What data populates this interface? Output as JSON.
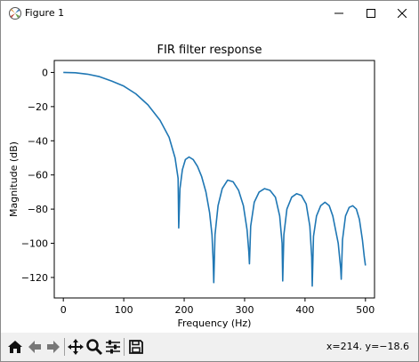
{
  "window": {
    "title": "Figure 1"
  },
  "toolbar": {
    "icons": [
      "home-icon",
      "back-arrow-icon",
      "forward-arrow-icon",
      "pan-move-icon",
      "zoom-magnifier-icon",
      "configure-subplots-icon",
      "save-floppy-icon"
    ],
    "coordinates": "x=214.  y=−18.6"
  },
  "chart_data": {
    "type": "line",
    "title": "FIR filter response",
    "xlabel": "Frequency (Hz)",
    "ylabel": "Magnitude (dB)",
    "xlim": [
      -15,
      515
    ],
    "ylim": [
      -132,
      7
    ],
    "xticks": [
      0,
      100,
      200,
      300,
      400,
      500
    ],
    "xtick_labels": [
      "0",
      "100",
      "200",
      "300",
      "400",
      "500"
    ],
    "yticks": [
      0,
      -20,
      -40,
      -60,
      -80,
      -100,
      -120
    ],
    "ytick_labels": [
      "0",
      "−20",
      "−40",
      "−60",
      "−80",
      "−100",
      "−120"
    ],
    "grid": false,
    "series": [
      {
        "color": "#1f77b4",
        "x": [
          0,
          20,
          40,
          60,
          80,
          100,
          120,
          140,
          160,
          175,
          185,
          190,
          191,
          193,
          197,
          202,
          208,
          215,
          222,
          229,
          236,
          242,
          246,
          248,
          249,
          251,
          256,
          263,
          272,
          281,
          290,
          298,
          304,
          307,
          308,
          310,
          316,
          324,
          333,
          342,
          351,
          358,
          362,
          363,
          365,
          370,
          378,
          386,
          394,
          402,
          408,
          411,
          412,
          414,
          419,
          426,
          433,
          440,
          446,
          455,
          459,
          460,
          462,
          467,
          473,
          479,
          485,
          490,
          495,
          498,
          500
        ],
        "y": [
          0,
          -0.2,
          -1,
          -2.5,
          -5,
          -8,
          -12.5,
          -19,
          -28,
          -38,
          -50,
          -62,
          -91,
          -68,
          -57,
          -51,
          -49.5,
          -51,
          -55,
          -61,
          -70,
          -82,
          -95,
          -110,
          -123,
          -95,
          -78,
          -68,
          -63,
          -64,
          -69,
          -78,
          -92,
          -105,
          -112,
          -90,
          -76,
          -70,
          -68,
          -69,
          -73,
          -84,
          -100,
          -122,
          -95,
          -80,
          -73,
          -71,
          -72,
          -77,
          -90,
          -108,
          -125,
          -96,
          -84,
          -78,
          -76,
          -78,
          -84,
          -100,
          -115,
          -121,
          -98,
          -84,
          -79,
          -78,
          -80,
          -86,
          -98,
          -108,
          -113
        ]
      }
    ]
  }
}
